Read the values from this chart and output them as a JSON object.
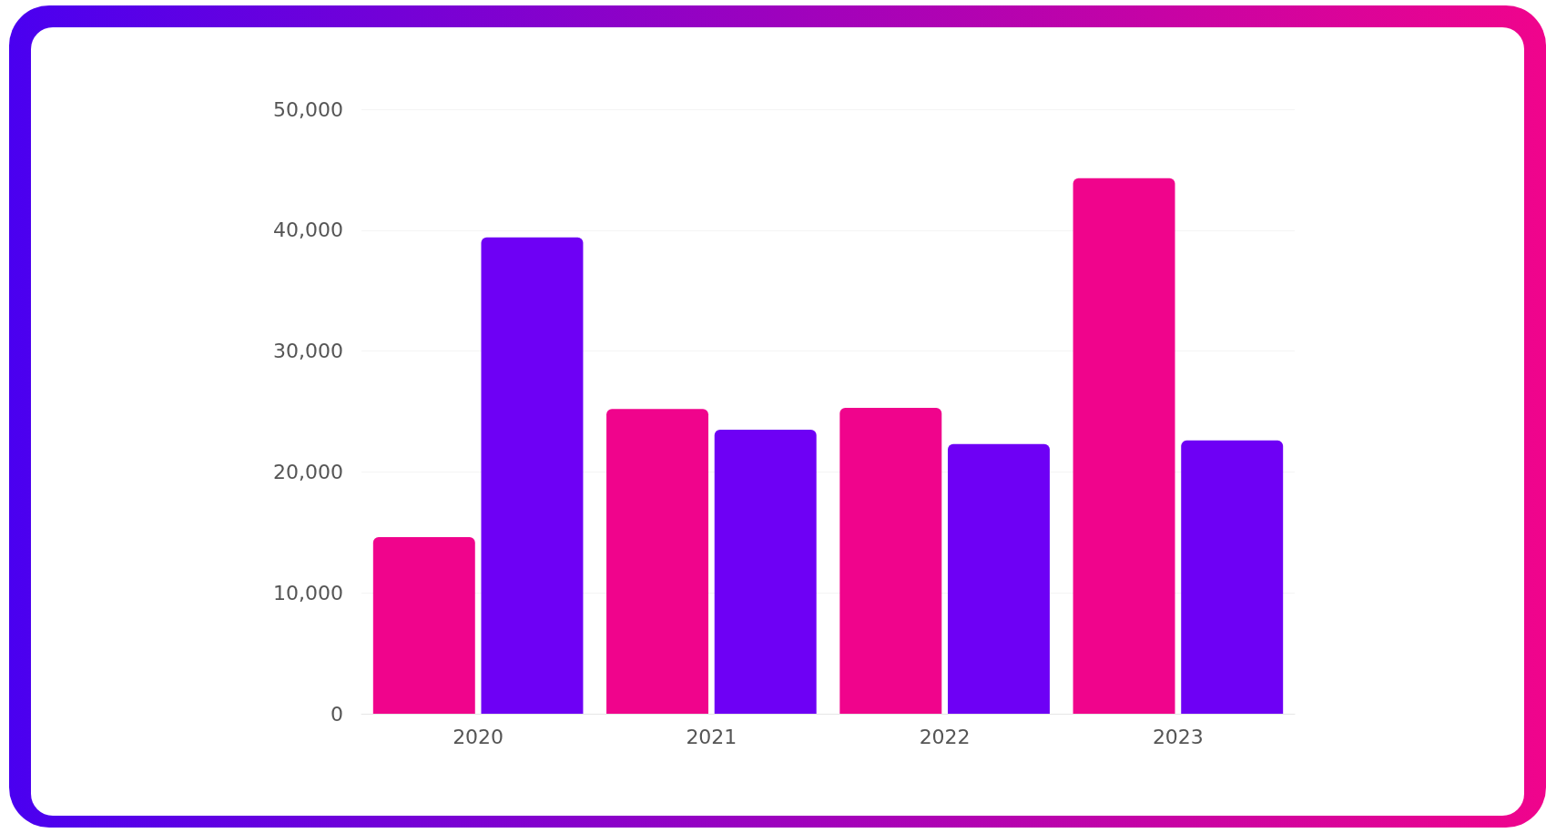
{
  "chart_data": {
    "type": "bar",
    "categories": [
      "2020",
      "2021",
      "2022",
      "2023"
    ],
    "series": [
      {
        "color": "#f0048c",
        "values": [
          14600,
          25200,
          25300,
          44300
        ]
      },
      {
        "color": "#6e00f5",
        "values": [
          39400,
          23500,
          22300,
          22600
        ]
      }
    ],
    "ylim": [
      0,
      50000
    ],
    "yticks": [
      0,
      {
        "value": 10000,
        "label": "10,000"
      },
      {
        "value": 20000,
        "label": "20,000"
      },
      {
        "value": 30000,
        "label": "30,000"
      },
      {
        "value": 40000,
        "label": "40,000"
      },
      {
        "value": 50000,
        "label": "50,000"
      }
    ],
    "grid": "y"
  }
}
